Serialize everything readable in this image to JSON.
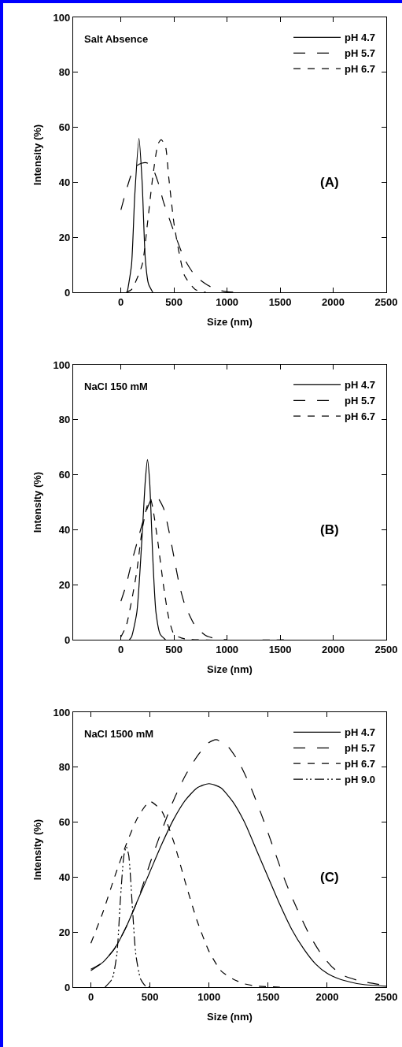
{
  "chart_data": [
    {
      "type": "line",
      "xlabel": "Size (nm)",
      "ylabel": "Intensity (%)",
      "annotations": [
        "Salt Absence",
        "(A)"
      ],
      "xlim": [
        -450,
        2500
      ],
      "xticks": [
        0,
        500,
        1000,
        1500,
        2000,
        2500
      ],
      "ylim": [
        0,
        100
      ],
      "yticks": [
        0,
        20,
        40,
        60,
        80,
        100
      ],
      "grid": false,
      "legend": "top right",
      "marker": "none",
      "series": [
        {
          "name": "pH 4.7",
          "color": "#000000",
          "line_style": "solid",
          "x": [
            60,
            100,
            130,
            170,
            200,
            230,
            260,
            300
          ],
          "values": [
            0,
            10,
            35,
            56,
            40,
            12,
            3,
            0
          ]
        },
        {
          "name": "pH 5.7",
          "color": "#000000",
          "line_style": "longdash",
          "x": [
            0,
            50,
            100,
            150,
            200,
            250,
            300,
            350,
            400,
            500,
            600,
            700,
            800,
            900,
            1000,
            1100
          ],
          "values": [
            30,
            37,
            43,
            46,
            47,
            47,
            45,
            40,
            33,
            22,
            12,
            6,
            3,
            1,
            0.2,
            0
          ]
        },
        {
          "name": "pH 6.7",
          "color": "#000000",
          "line_style": "dashed",
          "x": [
            50,
            100,
            200,
            250,
            300,
            350,
            380,
            420,
            450,
            500,
            550,
            600,
            700,
            800
          ],
          "values": [
            0,
            1,
            10,
            25,
            42,
            54,
            55.5,
            53,
            42,
            25,
            14,
            6,
            1,
            0
          ]
        }
      ]
    },
    {
      "type": "line",
      "xlabel": "Size (nm)",
      "ylabel": "Intensity (%)",
      "annotations": [
        "NaCl 150 mM",
        "(B)"
      ],
      "xlim": [
        -450,
        2500
      ],
      "xticks": [
        0,
        500,
        1000,
        1500,
        2000,
        2500
      ],
      "ylim": [
        0,
        100
      ],
      "yticks": [
        0,
        20,
        40,
        60,
        80,
        100
      ],
      "grid": false,
      "legend": "top right",
      "marker": "none",
      "series": [
        {
          "name": "pH 4.7",
          "color": "#000000",
          "line_style": "solid",
          "x": [
            80,
            100,
            150,
            200,
            230,
            250,
            270,
            300,
            330,
            370,
            420
          ],
          "values": [
            0,
            1,
            10,
            38,
            58,
            65.5,
            58,
            30,
            10,
            2,
            0
          ]
        },
        {
          "name": "pH 5.7",
          "color": "#000000",
          "line_style": "longdash",
          "x": [
            0,
            50,
            100,
            150,
            200,
            250,
            300,
            330,
            400,
            450,
            500,
            550,
            600,
            700,
            800,
            900,
            1000
          ],
          "values": [
            14,
            20,
            28,
            35,
            42,
            48,
            52,
            52.5,
            48,
            40,
            30,
            20,
            13,
            5,
            1.5,
            0.3,
            0
          ]
        },
        {
          "name": "pH 6.7",
          "color": "#000000",
          "line_style": "dashed",
          "x": [
            0,
            50,
            100,
            150,
            200,
            250,
            280,
            300,
            350,
            400,
            450,
            500,
            600,
            1600
          ],
          "values": [
            1,
            5,
            14,
            25,
            40,
            49,
            51,
            48,
            35,
            20,
            8,
            2,
            0.3,
            0
          ]
        }
      ]
    },
    {
      "type": "line",
      "xlabel": "Size (nm)",
      "ylabel": "Intensity (%)",
      "annotations": [
        "NaCl 1500 mM",
        "(C)"
      ],
      "xlim": [
        -150,
        2500
      ],
      "xticks": [
        0,
        500,
        1000,
        1500,
        2000,
        2500
      ],
      "ylim": [
        0,
        100
      ],
      "yticks": [
        0,
        20,
        40,
        60,
        80,
        100
      ],
      "grid": false,
      "legend": "top right",
      "marker": "none",
      "series": [
        {
          "name": "pH 4.7",
          "color": "#000000",
          "line_style": "solid",
          "x": [
            0,
            100,
            200,
            300,
            400,
            500,
            600,
            700,
            800,
            900,
            1000,
            1100,
            1200,
            1300,
            1400,
            1500,
            1600,
            1700,
            1800,
            1900,
            2000,
            2100,
            2200,
            2300,
            2500
          ],
          "values": [
            6.5,
            9,
            14,
            22,
            32,
            42,
            52,
            61,
            68,
            72.5,
            74,
            72.5,
            67.5,
            60,
            50,
            40,
            30,
            21,
            14,
            8.5,
            5,
            3,
            1.8,
            1,
            0.3
          ]
        },
        {
          "name": "pH 5.7",
          "color": "#000000",
          "line_style": "longdash",
          "x": [
            0,
            100,
            200,
            300,
            400,
            500,
            600,
            700,
            800,
            900,
            1000,
            1060,
            1150,
            1250,
            1350,
            1450,
            1550,
            1650,
            1750,
            1850,
            1950,
            2050,
            2150,
            2300,
            2500
          ],
          "values": [
            6,
            9,
            14,
            22,
            32,
            45,
            57,
            68,
            77,
            84,
            89,
            90,
            88,
            82,
            73,
            62,
            50,
            38,
            28,
            19,
            12,
            7,
            4,
            2,
            0.6
          ]
        },
        {
          "name": "pH 6.7",
          "color": "#000000",
          "line_style": "dashed",
          "x": [
            0,
            100,
            200,
            300,
            400,
            500,
            600,
            700,
            800,
            900,
            1000,
            1100,
            1200,
            1300,
            1400,
            1600
          ],
          "values": [
            16,
            27,
            40,
            52,
            62,
            67.5,
            64,
            53,
            38,
            24,
            13,
            6,
            3,
            1.2,
            0.4,
            0
          ]
        },
        {
          "name": "pH 9.0",
          "color": "#000000",
          "line_style": "dashdotdot",
          "x": [
            120,
            180,
            220,
            250,
            280,
            300,
            320,
            350,
            380,
            420,
            460,
            500
          ],
          "values": [
            0,
            3,
            12,
            32,
            48,
            51,
            48,
            30,
            12,
            3,
            0.5,
            0
          ]
        }
      ]
    }
  ]
}
